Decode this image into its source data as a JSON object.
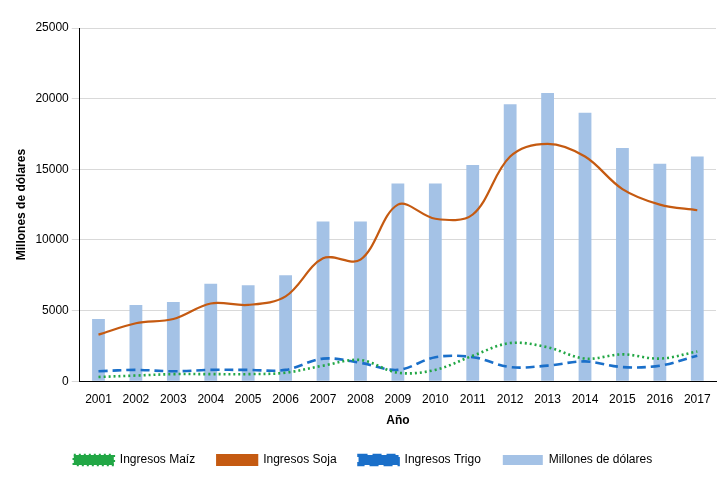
{
  "chart_data": {
    "type": "bar",
    "x_label": "Año",
    "y_label": "Millones de dólares",
    "categories": [
      "2001",
      "2002",
      "2003",
      "2004",
      "2005",
      "2006",
      "2007",
      "2008",
      "2009",
      "2010",
      "2011",
      "2012",
      "2013",
      "2014",
      "2015",
      "2016",
      "2017"
    ],
    "series": [
      {
        "name": "Millones de dólares",
        "type": "bar",
        "color": "#a4c2e6",
        "values": [
          4400,
          5400,
          5600,
          6900,
          6800,
          7500,
          11300,
          11300,
          14000,
          14000,
          15300,
          19600,
          20400,
          19000,
          16500,
          15400,
          15900
        ]
      },
      {
        "name": "Ingresos Maíz",
        "type": "line",
        "line_style": "dotted",
        "marker": "none",
        "color": "#22a745",
        "values": [
          300,
          400,
          500,
          500,
          500,
          600,
          1100,
          1500,
          600,
          800,
          1800,
          2700,
          2400,
          1600,
          1900,
          1600,
          2100
        ]
      },
      {
        "name": "Ingresos Soja",
        "type": "line",
        "line_style": "solid",
        "marker": "none",
        "color": "#c55a11",
        "values": [
          3300,
          4100,
          4400,
          5500,
          5400,
          6000,
          8700,
          8600,
          12500,
          11500,
          11800,
          15900,
          16800,
          15900,
          13600,
          12500,
          12100
        ]
      },
      {
        "name": "Ingresos Trigo",
        "type": "line",
        "line_style": "dashed",
        "marker": "none",
        "color": "#1a6fc9",
        "values": [
          700,
          800,
          700,
          800,
          800,
          800,
          1600,
          1300,
          800,
          1700,
          1700,
          1000,
          1100,
          1400,
          1000,
          1100,
          1800
        ]
      }
    ],
    "ylim": [
      0,
      25000
    ],
    "yticks": [
      0,
      5000,
      10000,
      15000,
      20000,
      25000
    ],
    "grid": true,
    "legend": "bottom"
  }
}
